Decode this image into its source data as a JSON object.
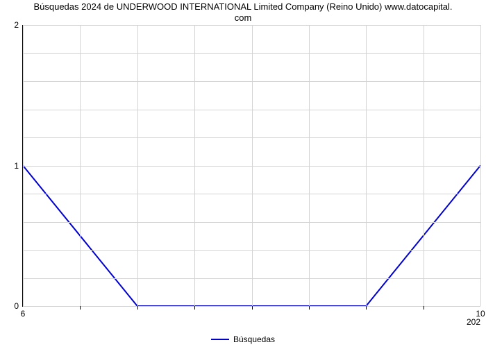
{
  "chart": {
    "type": "line",
    "title_line1": "Búsquedas 2024 de UNDERWOOD INTERNATIONAL Limited Company (Reino Unido) www.datocapital.",
    "title_line2": "com",
    "title_fontsize": 13,
    "background_color": "#ffffff",
    "grid_color": "#d3d3d3",
    "axis_color": "#000000",
    "label_fontsize": 12,
    "series": {
      "name": "Búsquedas",
      "color": "#0000cc",
      "line_width": 2,
      "x": [
        0,
        2,
        6,
        8
      ],
      "y": [
        1,
        0,
        0,
        1
      ]
    },
    "x_axis": {
      "min": 0,
      "max": 8,
      "tick_labels": [
        {
          "pos": 0,
          "label": "6"
        },
        {
          "pos": 8,
          "label": "10"
        }
      ],
      "extra_right_label": "202",
      "grid_lines": [
        0,
        1,
        2,
        3,
        4,
        5,
        6,
        7,
        8
      ],
      "minor_tick_marks": [
        1,
        2,
        3,
        4,
        5,
        6,
        7
      ]
    },
    "y_axis": {
      "min": 0,
      "max": 2,
      "tick_labels": [
        {
          "pos": 0,
          "label": "0"
        },
        {
          "pos": 1,
          "label": "1"
        },
        {
          "pos": 2,
          "label": "2"
        }
      ],
      "grid_lines": [
        0,
        0.2,
        0.4,
        0.6,
        0.8,
        1,
        1.2,
        1.4,
        1.6,
        1.8,
        2
      ]
    },
    "legend": {
      "position": "bottom-center",
      "label": "Búsquedas"
    }
  }
}
